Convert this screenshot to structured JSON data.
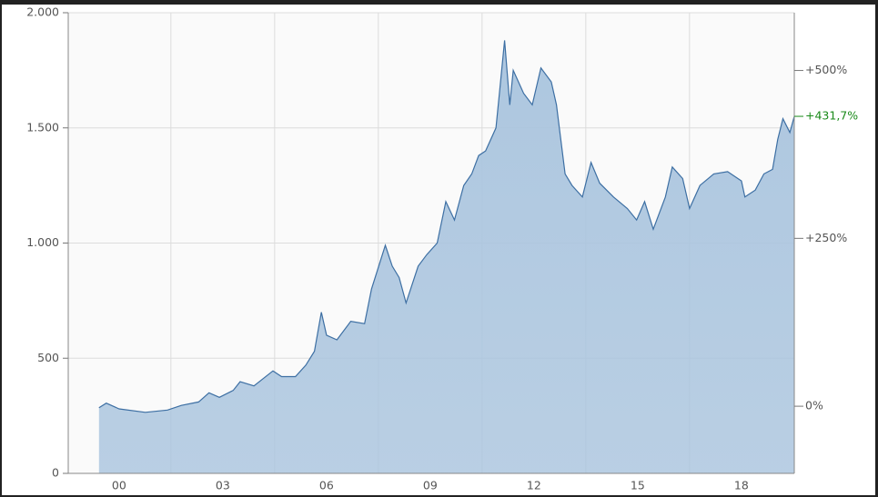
{
  "chart_data": {
    "type": "area",
    "color": "#3d6fa3",
    "fill": "#a9c4de",
    "grid": true,
    "xlim": [
      -1.47,
      19.53
    ],
    "xticks": [
      {
        "value": 0,
        "label": "00"
      },
      {
        "value": 3,
        "label": "03"
      },
      {
        "value": 6,
        "label": "06"
      },
      {
        "value": 9,
        "label": "09"
      },
      {
        "value": 12,
        "label": "12"
      },
      {
        "value": 15,
        "label": "15"
      },
      {
        "value": 18,
        "label": "18"
      }
    ],
    "ylim": [
      0,
      2000
    ],
    "yticks": [
      0,
      500,
      {
        "value": 1000,
        "label": "1.000"
      },
      {
        "value": 1500,
        "label": "1.500"
      },
      {
        "value": 2000,
        "label": "2.000"
      }
    ],
    "y2lim": [
      -100,
      586
    ],
    "y2ticks": [
      {
        "value": 0,
        "label": "0%"
      },
      {
        "value": 250,
        "label": "+250%"
      },
      {
        "value": 500,
        "label": "+500%"
      }
    ],
    "annotation": {
      "value": 431.7,
      "label": "+431,7%",
      "color": "#1a8a1a"
    },
    "x": [
      -0.58,
      -0.37,
      0,
      0.76,
      1.4,
      1.8,
      2.3,
      2.6,
      2.9,
      3.3,
      3.5,
      3.9,
      4.45,
      4.7,
      5.1,
      5.4,
      5.65,
      5.85,
      6.0,
      6.3,
      6.7,
      7.1,
      7.3,
      7.7,
      7.9,
      8.1,
      8.3,
      8.65,
      8.9,
      9.2,
      9.45,
      9.7,
      9.97,
      10.2,
      10.4,
      10.6,
      10.9,
      11.0,
      11.15,
      11.3,
      11.4,
      11.7,
      11.95,
      12.2,
      12.5,
      12.65,
      12.9,
      13.1,
      13.4,
      13.65,
      13.9,
      14.3,
      14.7,
      14.97,
      15.2,
      15.45,
      15.8,
      16.0,
      16.3,
      16.5,
      16.8,
      17.2,
      17.6,
      18.0,
      18.1,
      18.4,
      18.65,
      18.9,
      19.05,
      19.2,
      19.4,
      19.53
    ],
    "values": [
      285,
      305,
      280,
      265,
      275,
      295,
      310,
      350,
      330,
      360,
      398,
      380,
      445,
      420,
      420,
      470,
      530,
      700,
      600,
      580,
      660,
      650,
      800,
      990,
      900,
      850,
      740,
      900,
      950,
      1000,
      1180,
      1100,
      1250,
      1300,
      1380,
      1400,
      1500,
      1650,
      1880,
      1600,
      1750,
      1650,
      1600,
      1760,
      1700,
      1600,
      1300,
      1250,
      1200,
      1350,
      1260,
      1200,
      1150,
      1100,
      1180,
      1060,
      1200,
      1330,
      1280,
      1150,
      1250,
      1300,
      1310,
      1270,
      1200,
      1230,
      1300,
      1320,
      1450,
      1540,
      1480,
      1550
    ]
  }
}
